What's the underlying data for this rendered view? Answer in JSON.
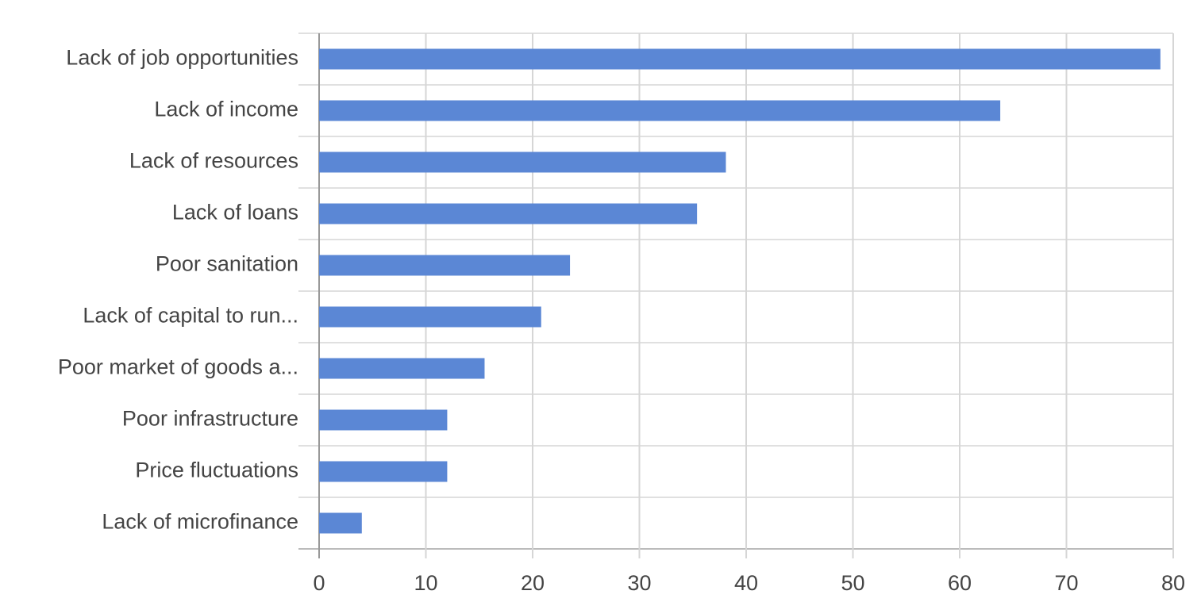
{
  "chart_data": {
    "type": "bar",
    "orientation": "horizontal",
    "categories": [
      "Lack of job opportunities",
      "Lack of income",
      "Lack of resources",
      "Lack of loans",
      "Poor sanitation",
      "Lack of capital to run...",
      "Poor market of goods a...",
      "Poor infrastructure",
      "Price fluctuations",
      "Lack of microfinance"
    ],
    "values": [
      78.8,
      63.8,
      38.1,
      35.4,
      23.5,
      20.8,
      15.5,
      12.0,
      12.0,
      4.0
    ],
    "color": "#5b87d5",
    "xlim": [
      0,
      80
    ],
    "xticks": [
      0,
      10,
      20,
      30,
      40,
      50,
      60,
      70,
      80
    ],
    "grid": true
  }
}
